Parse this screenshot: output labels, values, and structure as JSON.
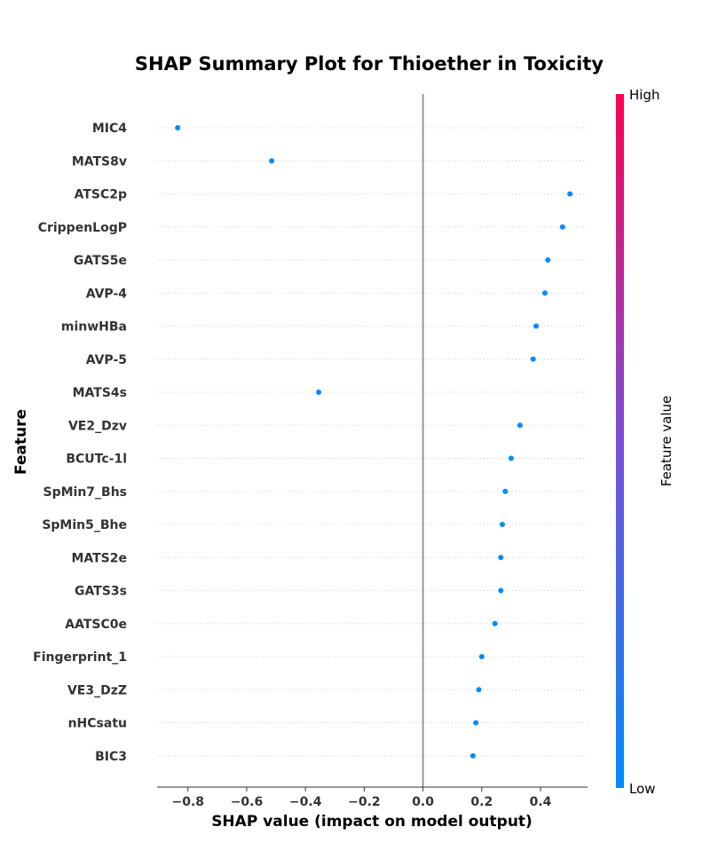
{
  "chart_data": {
    "type": "scatter",
    "title": "SHAP Summary Plot for Thioether in Toxicity",
    "xlabel": "SHAP value (impact on model output)",
    "ylabel": "Feature",
    "xlim": [
      -0.905,
      0.56
    ],
    "xticks": [
      -0.8,
      -0.6,
      -0.4,
      -0.2,
      0.0,
      0.2,
      0.4
    ],
    "xtick_labels": [
      "−0.8",
      "−0.6",
      "−0.4",
      "−0.2",
      "0.0",
      "0.2",
      "0.4"
    ],
    "colorbar": {
      "label": "Feature value",
      "high": "High",
      "low": "Low",
      "color_low": "#008bfb",
      "color_high": "#ff0052"
    },
    "features": [
      "MIC4",
      "MATS8v",
      "ATSC2p",
      "CrippenLogP",
      "GATS5e",
      "AVP-4",
      "minwHBa",
      "AVP-5",
      "MATS4s",
      "VE2_Dzv",
      "BCUTc-1l",
      "SpMin7_Bhs",
      "SpMin5_Bhe",
      "MATS2e",
      "GATS3s",
      "AATSC0e",
      "Fingerprint_1",
      "VE3_DzZ",
      "nHCsatu",
      "BIC3"
    ],
    "values": [
      -0.835,
      -0.515,
      0.5,
      0.475,
      0.425,
      0.415,
      0.385,
      0.375,
      -0.355,
      0.33,
      0.3,
      0.28,
      0.27,
      0.265,
      0.265,
      0.245,
      0.2,
      0.19,
      0.18,
      0.17
    ],
    "point_color": "#008bfb"
  }
}
